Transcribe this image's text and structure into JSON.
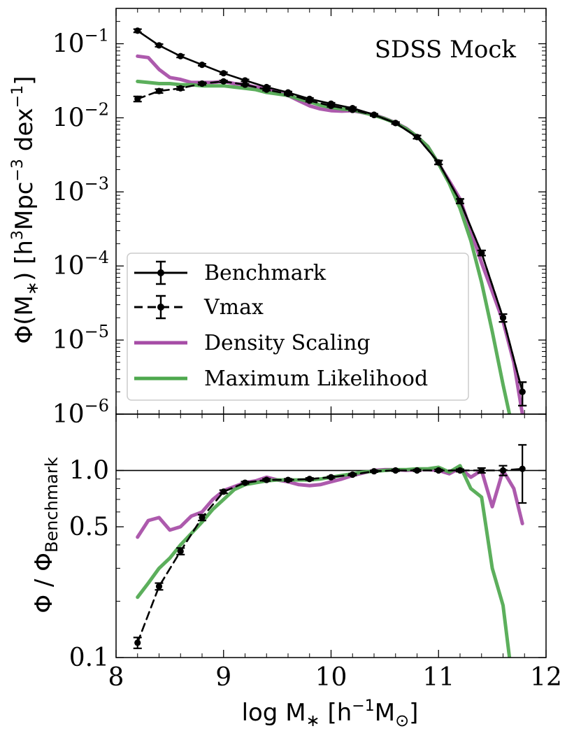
{
  "chart_data": [
    {
      "panel": "top",
      "type": "line",
      "title": "",
      "annotation": "SDSS Mock",
      "ylabel": "Φ(M∗) [h³Mpc⁻³ dex⁻¹]",
      "ylabel_parts": {
        "base": "Φ(M",
        "sub": "∗",
        "mid": ") [h",
        "sup1": "3",
        "mid2": "Mpc",
        "sup2": "−3",
        "mid3": " dex",
        "sup3": "−1",
        "end": "]"
      },
      "yscale": "log",
      "ylim": [
        1e-06,
        0.3
      ],
      "xlim": [
        8,
        12
      ],
      "yticks": [
        {
          "value": 0.1,
          "base": "10",
          "exp": "−1"
        },
        {
          "value": 0.01,
          "base": "10",
          "exp": "−2"
        },
        {
          "value": 0.001,
          "base": "10",
          "exp": "−3"
        },
        {
          "value": 0.0001,
          "base": "10",
          "exp": "−4"
        },
        {
          "value": 1e-05,
          "base": "10",
          "exp": "−5"
        },
        {
          "value": 1e-06,
          "base": "10",
          "exp": "−6"
        }
      ],
      "legend": {
        "position": "lower-left",
        "entries": [
          {
            "label": "Benchmark",
            "series": "benchmark"
          },
          {
            "label": "Vmax",
            "series": "vmax"
          },
          {
            "label": "Density Scaling",
            "series": "density"
          },
          {
            "label": "Maximum Likelihood",
            "series": "ml"
          }
        ]
      },
      "series": [
        {
          "name": "Benchmark",
          "key": "benchmark",
          "color": "#000000",
          "style": "solid",
          "markers": true,
          "errorbars": true,
          "x": [
            8.2,
            8.4,
            8.6,
            8.8,
            9.0,
            9.2,
            9.4,
            9.6,
            9.8,
            10.0,
            10.2,
            10.4,
            10.6,
            10.8,
            11.0,
            11.2,
            11.4,
            11.6,
            11.78
          ],
          "y": [
            0.15,
            0.095,
            0.068,
            0.052,
            0.04,
            0.032,
            0.026,
            0.022,
            0.018,
            0.0155,
            0.0135,
            0.011,
            0.0085,
            0.0055,
            0.0025,
            0.00075,
            0.00015,
            2e-05,
            2e-06
          ],
          "yerr_rel": [
            0.05,
            0.04,
            0.04,
            0.03,
            0.03,
            0.03,
            0.03,
            0.03,
            0.03,
            0.03,
            0.03,
            0.03,
            0.03,
            0.05,
            0.06,
            0.07,
            0.08,
            0.12,
            0.35
          ]
        },
        {
          "name": "Vmax",
          "key": "vmax",
          "color": "#000000",
          "style": "dashed",
          "markers": true,
          "errorbars": true,
          "x": [
            8.2,
            8.4,
            8.6,
            8.8,
            9.0,
            9.2,
            9.4,
            9.6,
            9.8,
            10.0,
            10.2,
            10.4,
            10.6,
            10.8,
            11.0,
            11.2,
            11.4,
            11.6,
            11.78
          ],
          "y": [
            0.018,
            0.023,
            0.025,
            0.029,
            0.031,
            0.028,
            0.024,
            0.021,
            0.017,
            0.0145,
            0.0128,
            0.0109,
            0.0085,
            0.0055,
            0.0025,
            0.00075,
            0.00015,
            2e-05,
            2e-06
          ],
          "yerr_rel": [
            0.08,
            0.06,
            0.05,
            0.04,
            0.03,
            0.03,
            0.03,
            0.03,
            0.03,
            0.03,
            0.03,
            0.03,
            0.03,
            0.05,
            0.06,
            0.07,
            0.08,
            0.12,
            0.35
          ]
        },
        {
          "name": "Density Scaling",
          "key": "density",
          "color": "#a64ca6",
          "style": "solid",
          "markers": false,
          "x": [
            8.2,
            8.3,
            8.4,
            8.5,
            8.6,
            8.7,
            8.8,
            8.9,
            9.0,
            9.1,
            9.2,
            9.3,
            9.4,
            9.5,
            9.6,
            9.7,
            9.8,
            9.9,
            10.0,
            10.1,
            10.2,
            10.3,
            10.4,
            10.5,
            10.6,
            10.7,
            10.8,
            10.9,
            11.0,
            11.1,
            11.2,
            11.3,
            11.4,
            11.5,
            11.6,
            11.7,
            11.78
          ],
          "y": [
            0.068,
            0.065,
            0.045,
            0.035,
            0.033,
            0.03,
            0.03,
            0.03,
            0.031,
            0.029,
            0.028,
            0.026,
            0.025,
            0.022,
            0.02,
            0.017,
            0.0145,
            0.0132,
            0.0125,
            0.0123,
            0.0125,
            0.0117,
            0.011,
            0.0098,
            0.0086,
            0.0072,
            0.0056,
            0.0041,
            0.0024,
            0.0014,
            0.0008,
            0.0003,
            0.00011,
            4.5e-05,
            1.8e-05,
            5e-06,
            1e-06
          ]
        },
        {
          "name": "Maximum Likelihood",
          "key": "ml",
          "color": "#4ea84e",
          "style": "solid",
          "markers": false,
          "x": [
            8.2,
            8.3,
            8.4,
            8.5,
            8.6,
            8.7,
            8.8,
            8.9,
            9.0,
            9.1,
            9.2,
            9.3,
            9.4,
            9.5,
            9.6,
            9.7,
            9.8,
            9.9,
            10.0,
            10.1,
            10.2,
            10.3,
            10.4,
            10.5,
            10.6,
            10.7,
            10.8,
            10.9,
            11.0,
            11.1,
            11.2,
            11.3,
            11.4,
            11.5,
            11.6,
            11.66
          ],
          "y": [
            0.031,
            0.03,
            0.029,
            0.029,
            0.028,
            0.028,
            0.027,
            0.027,
            0.027,
            0.026,
            0.025,
            0.024,
            0.022,
            0.021,
            0.02,
            0.018,
            0.0165,
            0.0148,
            0.0138,
            0.0132,
            0.0128,
            0.0118,
            0.0108,
            0.0097,
            0.0085,
            0.0071,
            0.0056,
            0.0041,
            0.0024,
            0.0013,
            0.0006,
            0.00022,
            6e-05,
            1.3e-05,
            2.5e-06,
            1e-06
          ]
        }
      ]
    },
    {
      "panel": "bottom",
      "type": "line",
      "xlabel": "log M∗ [h⁻¹M⊙]",
      "xlabel_parts": {
        "base": "log M",
        "sub": "∗",
        "mid": " [h",
        "sup": "−1",
        "mid2": "M",
        "sub2": "⊙",
        "end": "]"
      },
      "ylabel": "Φ / Φ_Benchmark",
      "ylabel_parts": {
        "base": "Φ / Φ",
        "sub": "Benchmark"
      },
      "yscale": "log",
      "ylim": [
        0.1,
        2.0
      ],
      "xlim": [
        8,
        12
      ],
      "xticks": [
        "8",
        "9",
        "10",
        "11",
        "12"
      ],
      "xtick_values": [
        8,
        9,
        10,
        11,
        12
      ],
      "yticks": [
        {
          "value": 1.0,
          "label": "1.0"
        },
        {
          "value": 0.5,
          "label": "0.5"
        },
        {
          "value": 0.1,
          "label": "0.1"
        }
      ],
      "reference_line": 1.0,
      "series": [
        {
          "name": "Vmax",
          "key": "vmax",
          "color": "#000000",
          "style": "dashed",
          "markers": true,
          "errorbars": true,
          "x": [
            8.2,
            8.4,
            8.6,
            8.8,
            9.0,
            9.2,
            9.4,
            9.6,
            9.8,
            10.0,
            10.2,
            10.4,
            10.6,
            10.8,
            11.0,
            11.2,
            11.4,
            11.6,
            11.78
          ],
          "y": [
            0.12,
            0.24,
            0.37,
            0.56,
            0.77,
            0.86,
            0.89,
            0.89,
            0.9,
            0.92,
            0.95,
            0.99,
            1.0,
            1.0,
            1.0,
            1.0,
            1.0,
            1.0,
            1.02
          ],
          "yerr": [
            0.008,
            0.01,
            0.015,
            0.02,
            0.015,
            0.012,
            0.012,
            0.012,
            0.012,
            0.01,
            0.01,
            0.01,
            0.01,
            0.01,
            0.012,
            0.015,
            0.03,
            0.06,
            0.35
          ]
        },
        {
          "name": "Density Scaling",
          "key": "density",
          "color": "#a64ca6",
          "style": "solid",
          "markers": false,
          "x": [
            8.2,
            8.3,
            8.4,
            8.5,
            8.6,
            8.7,
            8.8,
            8.9,
            9.0,
            9.1,
            9.2,
            9.3,
            9.4,
            9.5,
            9.6,
            9.7,
            9.8,
            9.9,
            10.0,
            10.1,
            10.2,
            10.3,
            10.4,
            10.5,
            10.6,
            10.7,
            10.8,
            10.9,
            11.0,
            11.1,
            11.2,
            11.3,
            11.4,
            11.5,
            11.6,
            11.7,
            11.78
          ],
          "y": [
            0.44,
            0.54,
            0.56,
            0.48,
            0.5,
            0.57,
            0.6,
            0.7,
            0.78,
            0.82,
            0.86,
            0.88,
            0.92,
            0.89,
            0.87,
            0.84,
            0.83,
            0.84,
            0.87,
            0.9,
            0.94,
            0.97,
            1.0,
            1.01,
            1.01,
            1.0,
            1.01,
            1.01,
            1.0,
            0.96,
            1.03,
            0.92,
            1.0,
            0.64,
            1.0,
            0.8,
            0.52
          ]
        },
        {
          "name": "Maximum Likelihood",
          "key": "ml",
          "color": "#4ea84e",
          "style": "solid",
          "markers": false,
          "x": [
            8.2,
            8.3,
            8.4,
            8.5,
            8.6,
            8.7,
            8.8,
            8.9,
            9.0,
            9.1,
            9.2,
            9.3,
            9.4,
            9.5,
            9.6,
            9.7,
            9.8,
            9.9,
            10.0,
            10.1,
            10.2,
            10.3,
            10.4,
            10.5,
            10.6,
            10.7,
            10.8,
            10.9,
            11.0,
            11.1,
            11.2,
            11.3,
            11.4,
            11.5,
            11.6,
            11.66
          ],
          "y": [
            0.21,
            0.25,
            0.3,
            0.34,
            0.4,
            0.46,
            0.53,
            0.62,
            0.7,
            0.79,
            0.84,
            0.86,
            0.88,
            0.89,
            0.89,
            0.89,
            0.89,
            0.9,
            0.92,
            0.94,
            0.96,
            0.98,
            0.99,
            1.0,
            1.01,
            1.01,
            1.02,
            1.02,
            1.04,
            0.98,
            1.06,
            0.8,
            0.72,
            0.3,
            0.19,
            0.1
          ]
        }
      ]
    }
  ]
}
